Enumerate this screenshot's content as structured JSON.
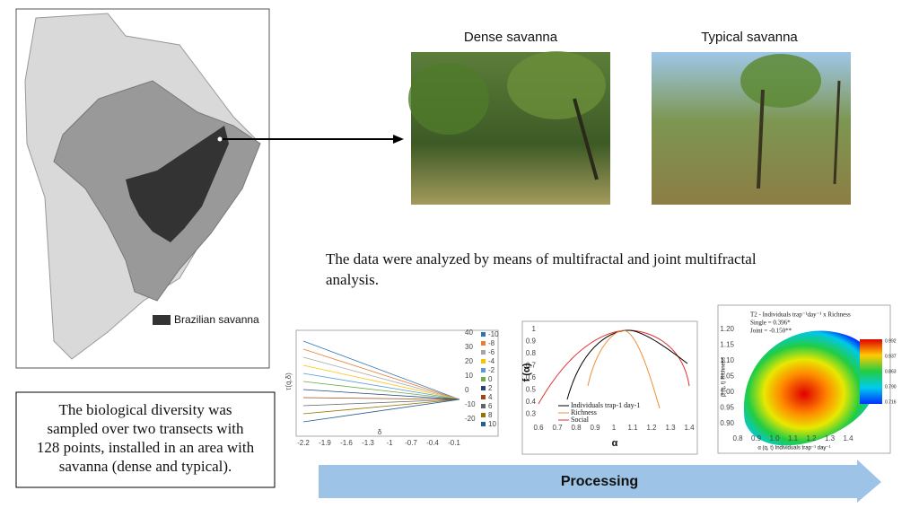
{
  "map": {
    "legend": "Brazilian savanna"
  },
  "photos": [
    {
      "title": "Dense savanna"
    },
    {
      "title": "Typical savanna"
    }
  ],
  "analysis_text": [
    "The data were analyzed by means of multifractal and joint multifractal",
    "analysis."
  ],
  "sampling_text": [
    "The biological diversity was",
    "sampled over two transects with",
    "128 points, installed in an area with",
    "savanna (dense and typical)."
  ],
  "process_label": "Processing",
  "charts": [
    {
      "y_label": "τ(q,δ)",
      "x_label": "δ",
      "xticks": [
        -2.2,
        -1.9,
        -1.6,
        -1.3,
        -1,
        -0.7,
        -0.4,
        -0.1
      ],
      "yticks": [
        40,
        30,
        20,
        10,
        0,
        -10,
        -20
      ],
      "legend": [
        -10,
        -8,
        -6,
        -4,
        -2,
        0,
        2,
        4,
        6,
        8,
        10
      ]
    },
    {
      "y_label": "f (α)",
      "x_label": "α",
      "xticks": [
        0.6,
        0.7,
        0.8,
        0.9,
        1,
        1.1,
        1.2,
        1.3,
        1.4
      ],
      "yticks": [
        1,
        0.9,
        0.8,
        0.7,
        0.6,
        0.5,
        0.4,
        0.3
      ],
      "legend": [
        "Individuals trap-1 day-1",
        "Richness",
        "Social"
      ]
    },
    {
      "title": "T2 - Individuals trap⁻¹day⁻¹ x Richness",
      "single": "Single = 0.396*",
      "joint": "Joint = -0.150**",
      "y_label": "β (q, t) Richness",
      "x_label": "α (q, t) Individuals trap⁻¹ day⁻¹",
      "xticks": [
        0.8,
        0.9,
        {
          "value": 1.0,
          "label": "1.0"
        },
        1.1,
        1.2,
        1.3,
        1.4
      ],
      "yticks": [
        {
          "value": 1.2,
          "label": "1.20"
        },
        1.15,
        {
          "value": 1.1,
          "label": "1.10"
        },
        1.05,
        {
          "value": 1.0,
          "label": "1.00"
        },
        0.95,
        {
          "value": 0.9,
          "label": "0.90"
        }
      ],
      "colorbar": [
        0.992,
        0.937,
        0.863,
        {
          "value": 0.79,
          "label": "0.790"
        },
        0.716
      ]
    }
  ]
}
